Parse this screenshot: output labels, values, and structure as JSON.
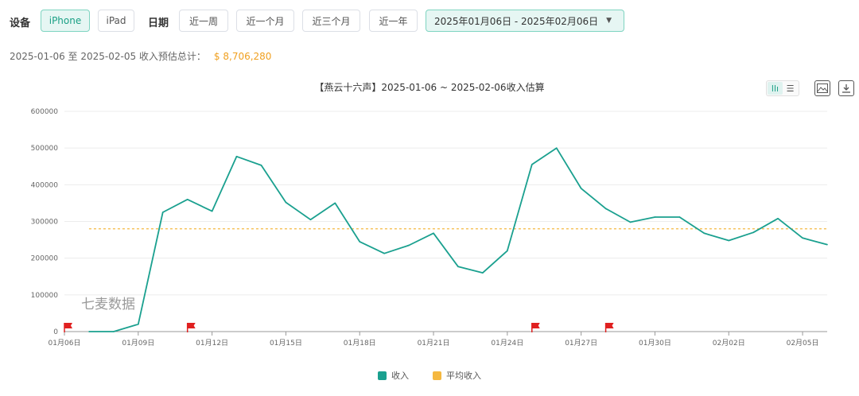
{
  "filters": {
    "device_label": "设备",
    "devices": [
      "iPhone",
      "iPad"
    ],
    "active_device": "iPhone",
    "date_label": "日期",
    "quick_ranges": [
      "近一周",
      "近一个月",
      "近三个月",
      "近一年"
    ],
    "date_range": "2025年01月06日 - 2025年02月06日"
  },
  "summary": {
    "text": "2025-01-06 至 2025-02-05 收入预估总计：",
    "amount": "$ 8,706,280"
  },
  "toolbar": {
    "toggle_a": "llı",
    "toggle_b": "☰",
    "image_icon": "image-icon",
    "download_icon": "download-icon"
  },
  "watermark": "七麦数据",
  "colors": {
    "revenue": "#1aa08f",
    "average": "#f5b840",
    "accent": "#1aa085",
    "flag": "#e02020"
  },
  "chart_data": {
    "type": "line",
    "title": "【燕云十六声】2025-01-06 ~ 2025-02-06收入估算",
    "x": [
      "01月06日",
      "01月07日",
      "01月08日",
      "01月09日",
      "01月10日",
      "01月11日",
      "01月12日",
      "01月13日",
      "01月14日",
      "01月15日",
      "01月16日",
      "01月17日",
      "01月18日",
      "01月19日",
      "01月20日",
      "01月21日",
      "01月22日",
      "01月23日",
      "01月24日",
      "01月25日",
      "01月26日",
      "01月27日",
      "01月28日",
      "01月29日",
      "01月30日",
      "01月31日",
      "02月01日",
      "02月02日",
      "02月03日",
      "02月04日",
      "02月05日",
      "02月06日"
    ],
    "x_tick_labels": [
      "01月06日",
      "01月09日",
      "01月12日",
      "01月15日",
      "01月18日",
      "01月21日",
      "01月24日",
      "01月27日",
      "01月30日",
      "02月02日",
      "02月05日"
    ],
    "series": [
      {
        "name": "收入",
        "values": [
          null,
          0,
          0,
          20000,
          325000,
          360000,
          328000,
          477000,
          453000,
          352000,
          305000,
          350000,
          245000,
          213000,
          235000,
          268000,
          177000,
          160000,
          220000,
          455000,
          500000,
          390000,
          335000,
          298000,
          312000,
          312000,
          268000,
          248000,
          270000,
          308000,
          255000,
          237000
        ]
      },
      {
        "name": "平均收入",
        "value": 280000
      }
    ],
    "y_tick_labels": [
      "0",
      "100000",
      "200000",
      "300000",
      "400000",
      "500000",
      "600000"
    ],
    "ylim": [
      0,
      600000
    ],
    "flag_dates": [
      "01月06日",
      "01月11日",
      "01月25日",
      "01月28日"
    ],
    "grid": "horizontal",
    "legend_position": "bottom"
  }
}
